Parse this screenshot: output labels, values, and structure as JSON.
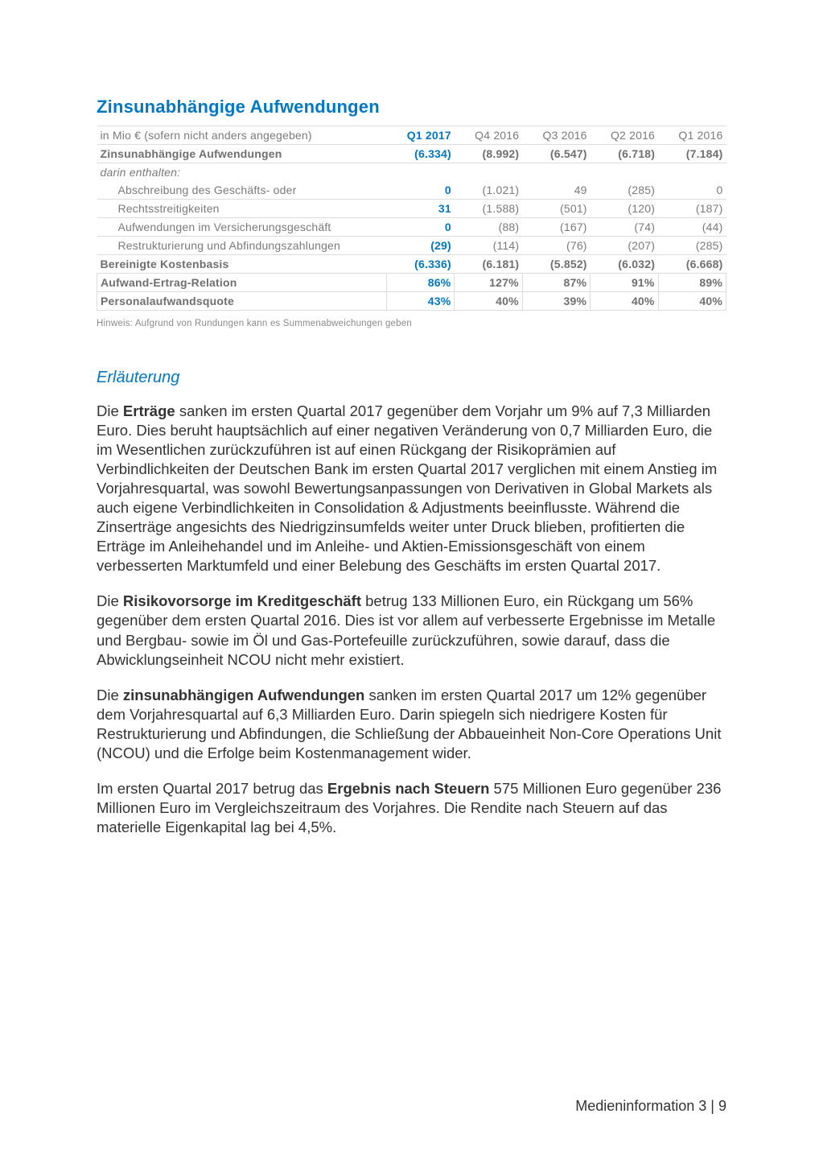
{
  "section_title": "Zinsunabhängige Aufwendungen",
  "table": {
    "header_label": "in Mio € (sofern nicht anders angegeben)",
    "columns": [
      "Q1 2017",
      "Q4 2016",
      "Q3 2016",
      "Q2 2016",
      "Q1 2016"
    ],
    "highlight_col": 0,
    "rows": [
      {
        "type": "totals",
        "label": "Zinsunabhängige Aufwendungen",
        "values": [
          "(6.334)",
          "(8.992)",
          "(6.547)",
          "(6.718)",
          "(7.184)"
        ]
      },
      {
        "type": "italic",
        "label": "darin enthalten:",
        "values": [
          "",
          "",
          "",
          "",
          ""
        ],
        "noborder": true
      },
      {
        "type": "sub",
        "label": "Abschreibung des Geschäfts- oder",
        "values": [
          "0",
          "(1.021)",
          "49",
          "(285)",
          "0"
        ]
      },
      {
        "type": "sub",
        "label": "Rechtsstreitigkeiten",
        "values": [
          "31",
          "(1.588)",
          "(501)",
          "(120)",
          "(187)"
        ]
      },
      {
        "type": "sub",
        "label": "Aufwendungen im Versicherungsgeschäft",
        "values": [
          "0",
          "(88)",
          "(167)",
          "(74)",
          "(44)"
        ]
      },
      {
        "type": "sub",
        "label": "Restrukturierung und Abfindungszahlungen",
        "values": [
          "(29)",
          "(114)",
          "(76)",
          "(207)",
          "(285)"
        ]
      },
      {
        "type": "totals",
        "label": "Bereinigte Kostenbasis",
        "values": [
          "(6.336)",
          "(6.181)",
          "(5.852)",
          "(6.032)",
          "(6.668)"
        ]
      },
      {
        "type": "ratio bold",
        "label": "Aufwand-Ertrag-Relation",
        "values": [
          "86%",
          "127%",
          "87%",
          "91%",
          "89%"
        ]
      },
      {
        "type": "ratio bold",
        "label": "Personalaufwandsquote",
        "values": [
          "43%",
          "40%",
          "39%",
          "40%",
          "40%"
        ]
      }
    ],
    "note": "Hinweis: Aufgrund von Rundungen kann es Summenabweichungen geben"
  },
  "subheading": "Erläuterung",
  "paragraphs": [
    {
      "pre": "Die ",
      "bold": "Erträge",
      "post": " sanken im ersten Quartal 2017 gegenüber dem Vorjahr um 9% auf 7,3 Milliarden Euro. Dies beruht hauptsächlich auf einer negativen Veränderung von 0,7 Milliarden Euro, die im Wesentlichen zurückzuführen ist auf einen Rückgang der Risikoprämien auf Verbindlichkeiten der Deutschen Bank im ersten Quartal 2017 verglichen mit einem Anstieg im Vorjahresquartal, was sowohl Bewertungsanpassungen von Derivativen in Global Markets als auch eigene Verbindlichkeiten in Consolidation & Adjustments beeinflusste. Während die Zinserträge angesichts des Niedrigzinsumfelds weiter unter Druck blieben, profitierten die Erträge im Anleihehandel und im Anleihe- und Aktien-Emissionsgeschäft von einem verbesserten Marktumfeld und einer Belebung des Geschäfts im ersten Quartal 2017."
    },
    {
      "pre": "Die ",
      "bold": "Risikovorsorge im Kreditgeschäft",
      "post": " betrug 133 Millionen Euro, ein Rückgang um 56% gegenüber dem ersten Quartal 2016. Dies ist vor allem auf verbesserte Ergebnisse im Metalle und Bergbau- sowie im Öl und Gas-Portefeuille zurückzuführen, sowie darauf, dass die Abwicklungseinheit NCOU nicht mehr existiert."
    },
    {
      "pre": "Die ",
      "bold": "zinsunabhängigen Aufwendungen",
      "post": " sanken im ersten Quartal 2017 um 12% gegenüber dem Vorjahresquartal auf 6,3 Milliarden Euro. Darin spiegeln sich niedrigere Kosten für Restrukturierung und Abfindungen, die Schließung der Abbaueinheit Non-Core Operations Unit (NCOU) und die Erfolge beim Kostenmanagement wider."
    },
    {
      "pre": "Im ersten Quartal 2017 betrug das ",
      "bold": "Ergebnis nach Steuern",
      "post": " 575 Millionen Euro gegenüber 236 Millionen Euro im Vergleichszeitraum des Vorjahres. Die Rendite nach Steuern auf das materielle Eigenkapital lag bei 4,5%."
    }
  ],
  "footer": "Medieninformation 3 | 9",
  "colors": {
    "accent": "#0077c0",
    "text": "#333333",
    "muted": "#7a7a7a",
    "rule": "#dcdcdc",
    "background": "#ffffff"
  },
  "typography": {
    "section_title_fontsize": 22,
    "sub_heading_fontsize": 20,
    "body_fontsize": 18.5,
    "table_fontsize": 14,
    "note_fontsize": 11.5,
    "font_family": "Arial"
  }
}
